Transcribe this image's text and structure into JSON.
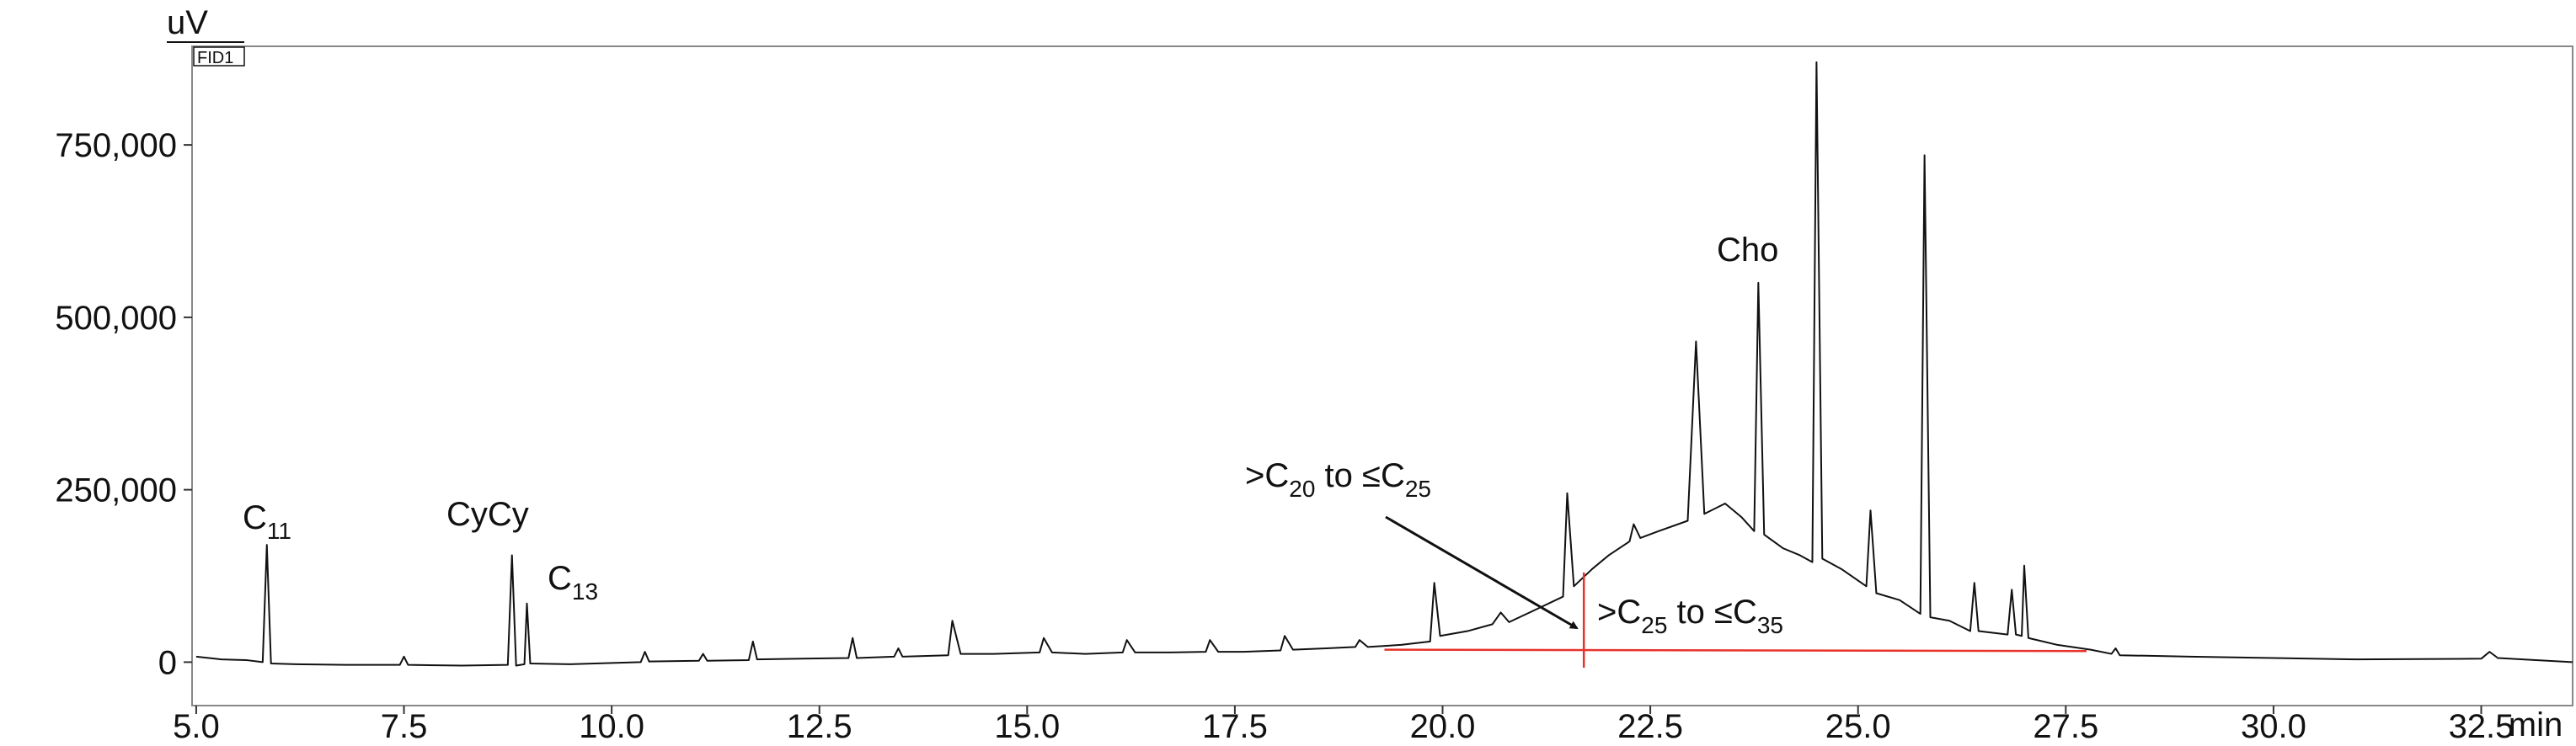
{
  "chart_data": {
    "type": "line",
    "y_label": "uV",
    "detector": "FID1",
    "x_label": "min",
    "xlim": [
      4.95,
      33.6
    ],
    "ylim": [
      -63000,
      893000
    ],
    "xticks": [
      {
        "value": 5,
        "label": "5.0"
      },
      {
        "value": 7.5,
        "label": "7.5"
      },
      {
        "value": 10,
        "label": "10.0"
      },
      {
        "value": 12.5,
        "label": "12.5"
      },
      {
        "value": 15,
        "label": "15.0"
      },
      {
        "value": 17.5,
        "label": "17.5"
      },
      {
        "value": 20,
        "label": "20.0"
      },
      {
        "value": 22.5,
        "label": "22.5"
      },
      {
        "value": 25,
        "label": "25.0"
      },
      {
        "value": 27.5,
        "label": "27.5"
      },
      {
        "value": 30,
        "label": "30.0"
      },
      {
        "value": 32.5,
        "label": "32.5"
      }
    ],
    "yticks": [
      0,
      {
        "value": 250000,
        "label": "250,000"
      },
      {
        "value": 500000,
        "label": "500,000"
      },
      {
        "value": 750000,
        "label": "750,000"
      }
    ],
    "grid": false,
    "series": [
      {
        "color": "#111111",
        "x": [
          5.0,
          5.3,
          5.6,
          5.8,
          5.85,
          5.9,
          6.2,
          6.8,
          7.45,
          7.5,
          7.55,
          8.2,
          8.75,
          8.8,
          8.85,
          8.95,
          8.98,
          9.02,
          9.5,
          10.35,
          10.4,
          10.45,
          11.05,
          11.1,
          11.15,
          11.65,
          11.7,
          11.75,
          12.3,
          12.85,
          12.9,
          12.95,
          13.4,
          13.45,
          13.5,
          14.05,
          14.1,
          14.2,
          14.6,
          15.15,
          15.2,
          15.3,
          15.7,
          16.15,
          16.2,
          16.3,
          16.7,
          17.15,
          17.2,
          17.3,
          17.6,
          18.05,
          18.1,
          18.2,
          18.6,
          18.95,
          19.0,
          19.1,
          19.5,
          19.85,
          19.9,
          19.97,
          20.3,
          20.6,
          20.7,
          20.8,
          21.1,
          21.45,
          21.5,
          21.58,
          21.8,
          22.0,
          22.25,
          22.3,
          22.38,
          22.6,
          22.95,
          23.05,
          23.15,
          23.4,
          23.6,
          23.75,
          23.8,
          23.87,
          24.1,
          24.3,
          24.45,
          24.5,
          24.57,
          24.8,
          25.1,
          25.15,
          25.22,
          25.5,
          25.75,
          25.8,
          25.87,
          26.1,
          26.35,
          26.4,
          26.45,
          26.8,
          26.85,
          26.9,
          26.97,
          27.0,
          27.05,
          27.4,
          27.8,
          28.05,
          28.1,
          28.15,
          29.0,
          30.0,
          31.0,
          32.5,
          32.6,
          32.7,
          33.6
        ],
        "values": [
          8000,
          4000,
          3000,
          0,
          170000,
          -2000,
          -3000,
          -4000,
          -4000,
          8000,
          -4000,
          -5000,
          -4000,
          155000,
          -5000,
          -3000,
          85000,
          -2000,
          -3000,
          0,
          15000,
          1000,
          2000,
          12000,
          2000,
          3000,
          30000,
          4000,
          5000,
          6000,
          35000,
          6000,
          8000,
          20000,
          8000,
          10000,
          60000,
          12000,
          12000,
          14000,
          35000,
          14000,
          12000,
          14000,
          32000,
          14000,
          14000,
          15000,
          32000,
          15000,
          15000,
          17000,
          38000,
          18000,
          20000,
          22000,
          32000,
          22000,
          25000,
          30000,
          115000,
          38000,
          45000,
          55000,
          72000,
          58000,
          75000,
          95000,
          245000,
          110000,
          135000,
          155000,
          175000,
          200000,
          180000,
          190000,
          205000,
          465000,
          215000,
          230000,
          210000,
          190000,
          550000,
          185000,
          165000,
          155000,
          145000,
          870000,
          150000,
          135000,
          110000,
          220000,
          100000,
          90000,
          70000,
          735000,
          65000,
          60000,
          45000,
          115000,
          45000,
          40000,
          105000,
          40000,
          38000,
          140000,
          35000,
          25000,
          18000,
          12000,
          20000,
          10000,
          8000,
          6000,
          4000,
          5000,
          15000,
          6000,
          0
        ]
      },
      {
        "color": "#e8322b",
        "x": [
          19.3,
          27.75
        ],
        "values": [
          18000,
          16000
        ]
      },
      {
        "color": "#e8322b",
        "x": [
          21.7,
          21.7
        ],
        "values": [
          -8000,
          130000
        ]
      }
    ],
    "annotations": [
      {
        "parts": [
          "C",
          "11"
        ]
      },
      {
        "parts": [
          "CyCy"
        ]
      },
      {
        "parts": [
          "C",
          "13"
        ]
      },
      {
        "parts": [
          "Cho"
        ]
      },
      {
        "parts": [
          ">C",
          "20",
          " to ≤C",
          "25"
        ]
      },
      {
        "parts": [
          ">C",
          "25",
          " to ≤C",
          "35"
        ]
      }
    ]
  }
}
